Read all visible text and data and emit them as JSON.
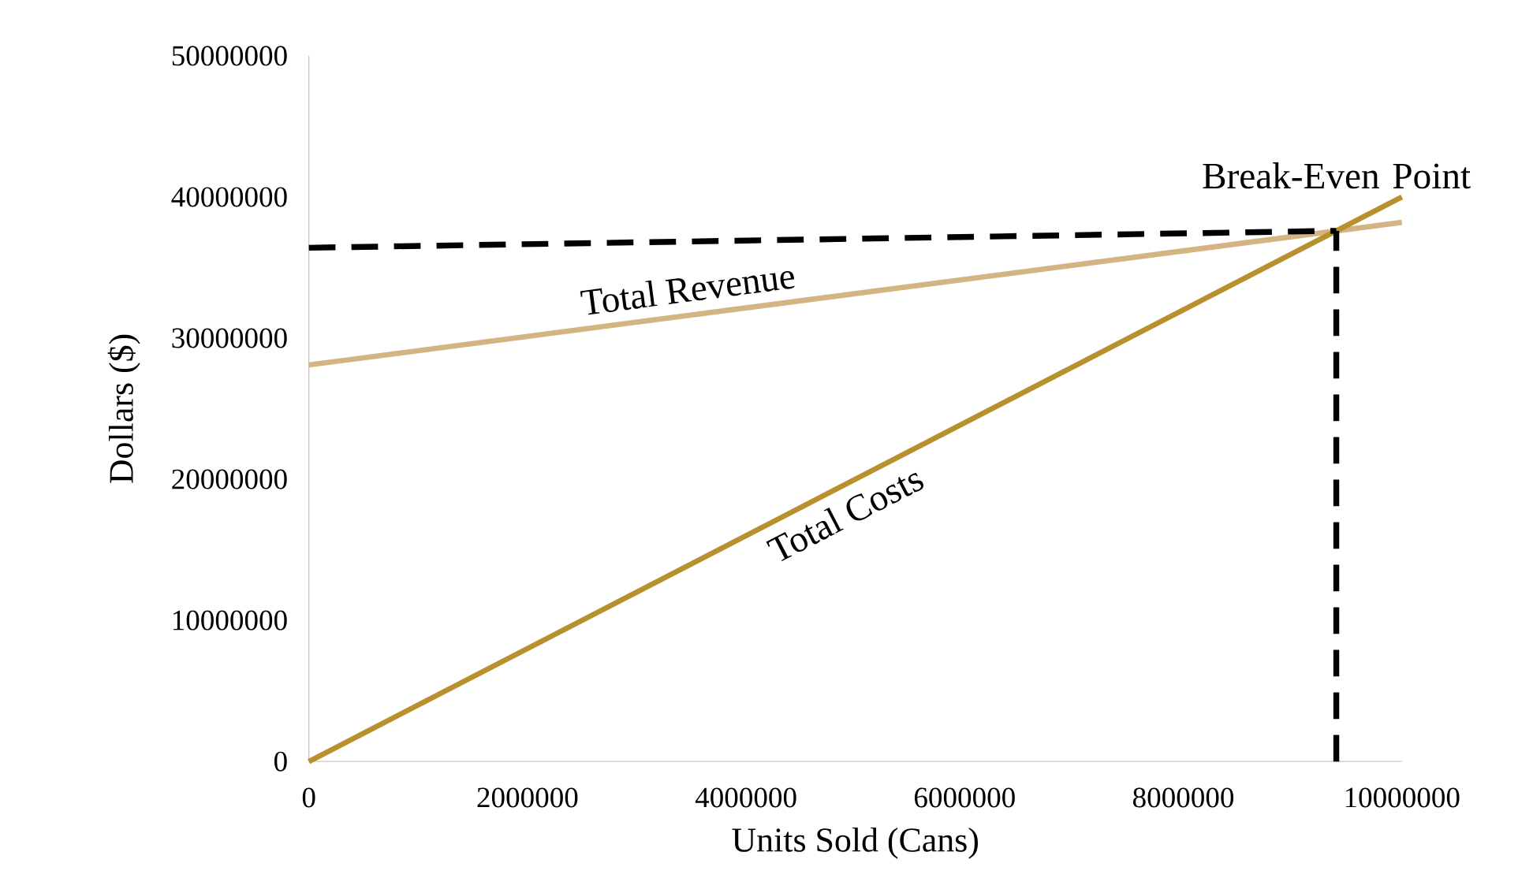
{
  "chart_data": {
    "type": "line",
    "xlabel": "Units Sold (Cans)",
    "ylabel": "Dollars ($)",
    "xlim": [
      0,
      10000000
    ],
    "ylim": [
      0,
      50000000
    ],
    "xticks": [
      0,
      2000000,
      4000000,
      6000000,
      8000000,
      10000000
    ],
    "yticks": [
      0,
      10000000,
      20000000,
      30000000,
      40000000,
      50000000
    ],
    "grid": false,
    "legend": false,
    "marker": "none",
    "line_style": "solid",
    "series": [
      {
        "name": "Total Revenue",
        "color": "#d4b483",
        "x": [
          0,
          10000000
        ],
        "values": [
          28100000,
          38200000
        ]
      },
      {
        "name": "Total Costs",
        "color": "#b8902e",
        "x": [
          0,
          10000000
        ],
        "values": [
          0,
          40000000
        ]
      },
      {
        "color": "#000000",
        "line_style": "dashed",
        "x": [
          0,
          9400000
        ],
        "values": [
          36400000,
          37600000
        ]
      },
      {
        "color": "#000000",
        "line_style": "dashed",
        "x": [
          9400000,
          9400000
        ],
        "values": [
          0,
          37600000
        ]
      }
    ],
    "annotations": [
      {
        "text": "Break-Even Point",
        "x": 9400000,
        "y": 37600000
      }
    ]
  }
}
